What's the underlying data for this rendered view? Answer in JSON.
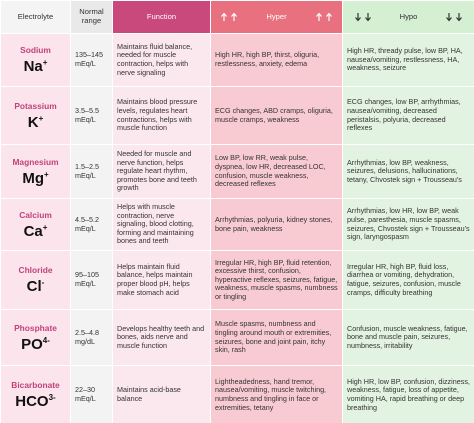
{
  "header": {
    "electrolyte": "Electrolyte",
    "range": "Normal range",
    "function": "Function",
    "hyper": "Hyper",
    "hypo": "Hypo"
  },
  "rows": [
    {
      "name": "Sodium",
      "symbol": "Na",
      "charge": "+",
      "range": "135–145",
      "unit": "mEq/L",
      "function": "Maintains fluid balance, needed for muscle contraction, helps with nerve signaling",
      "hyper": "High HR, high BP, thirst, oliguria, restlessness, anxiety, edema",
      "hypo": "High HR, thready pulse, low BP, HA, nausea/vomiting, restlessness, HA, weakness, seizure"
    },
    {
      "name": "Potassium",
      "symbol": "K",
      "charge": "+",
      "range": "3.5–5.5",
      "unit": "mEq/L",
      "function": "Maintains blood pressure levels, regulates heart contractions, helps with muscle function",
      "hyper": "ECG changes, ABD cramps, oliguria, muscle cramps, weakness",
      "hypo": "ECG changes, low BP, arrhythmias, nausea/vomiting, decreased peristalsis, polyuria, decreased reflexes"
    },
    {
      "name": "Magnesium",
      "symbol": "Mg",
      "charge": "+",
      "range": "1.5–2.5",
      "unit": "mEq/L",
      "function": "Needed for muscle and nerve function, helps regulate heart rhythm, promotes bone and teeth growth",
      "hyper": "Low BP, low RR, weak pulse, dyspnea, low HR, decreased LOC, confusion, muscle weakness, decreased reflexes",
      "hypo": "Arrhythmias, low BP, weakness, seizures, delusions, hallucinations, tetany, Chvostek sign + Trousseau's"
    },
    {
      "name": "Calcium",
      "symbol": "Ca",
      "charge": "+",
      "range": "4.5–5.2",
      "unit": "mEq/L",
      "function": "Helps with muscle contraction, nerve signaling, blood clotting, forming and maintaining bones and teeth",
      "hyper": "Arrhythmias, polyuria, kidney stones, bone pain, weakness",
      "hypo": "Arrhythmias, low HR, low BP, weak pulse, paresthesia, muscle spasms, seizures, Chvostek sign + Trousseau's sign, laryngospasm"
    },
    {
      "name": "Chloride",
      "symbol": "Cl",
      "charge": "-",
      "range": "95–105",
      "unit": "mEq/L",
      "function": "Helps maintain fluid balance, helps maintain proper blood pH, helps make stomach acid",
      "hyper": "Irregular HR, high BP, fluid retention, excessive thirst, confusion, hyperactive reflexes, seizures, fatigue, weakness, muscle spasms, numbness or tingling",
      "hypo": "Irregular HR, high BP, fluid loss, diarrhea or vomiting, dehydration, fatigue, seizures, confusion, muscle cramps, difficulty breathing"
    },
    {
      "name": "Phosphate",
      "symbol": "PO",
      "charge": "4-",
      "range": "2.5–4.8",
      "unit": "mg/dL",
      "function": "Develops healthy teeth and bones, aids nerve and muscle function",
      "hyper": "Muscle spasms, numbness and tingling around mouth or extremities, seizures, bone and joint pain, itchy skin, rash",
      "hypo": "Confusion, muscle weakness, fatigue, bone and muscle pain, seizures, numbness, irritability"
    },
    {
      "name": "Bicarbonate",
      "symbol": "HCO",
      "charge": "3-",
      "range": "22–30",
      "unit": "mEq/L",
      "function": "Maintains acid-base balance",
      "hyper": "Lightheadedness, hand tremor, nausea/vomiting, muscle twitching, numbness and tingling in face or extremities, tetany",
      "hypo": "High HR, low BP, confusion, dizziness, weakness, fatigue, loss of appetite, vomiting HA, rapid breathing or deep breathing"
    }
  ]
}
